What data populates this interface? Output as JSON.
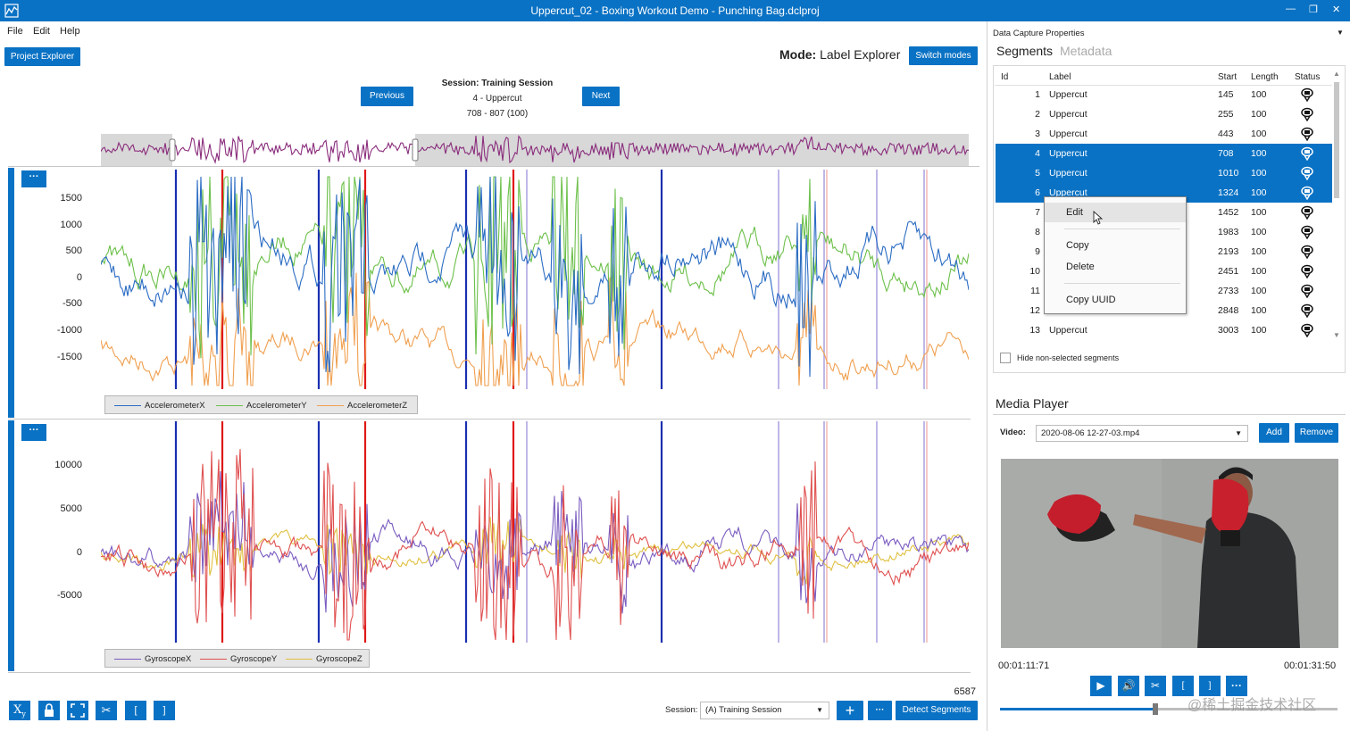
{
  "window": {
    "title": "Uppercut_02 - Boxing Workout Demo - Punching Bag.dclproj",
    "accent": "#0a72c4"
  },
  "menu": [
    "File",
    "Edit",
    "Help"
  ],
  "project_explorer_label": "Project Explorer",
  "mode": {
    "prefix": "Mode:",
    "value": "Label Explorer",
    "switch_label": "Switch modes"
  },
  "session_nav": {
    "previous": "Previous",
    "next": "Next",
    "line1": "Session: Training Session",
    "line2": "4 - Uppercut",
    "line3": "708 - 807 (100)"
  },
  "accel_chart": {
    "dots_label": "···",
    "yticks": [
      "1500",
      "1000",
      "500",
      "0",
      "-500",
      "-1000",
      "-1500"
    ],
    "series": [
      {
        "name": "AccelerometerX",
        "color": "#2b6cc4"
      },
      {
        "name": "AccelerometerY",
        "color": "#6cc04a"
      },
      {
        "name": "AccelerometerZ",
        "color": "#f0a050"
      }
    ]
  },
  "gyro_chart": {
    "dots_label": "···",
    "yticks": [
      "10000",
      "5000",
      "0",
      "-5000"
    ],
    "series": [
      {
        "name": "GyroscopeX",
        "color": "#7a5cc0"
      },
      {
        "name": "GyroscopeY",
        "color": "#e05050"
      },
      {
        "name": "GyroscopeZ",
        "color": "#e0c040"
      }
    ]
  },
  "bottom_toolbar": {
    "count": "6587",
    "session_label": "Session:",
    "session_value": "(A) Training Session",
    "detect_label": "Detect Segments",
    "icons": [
      "xy-icon",
      "lock-icon",
      "fit-icon",
      "scissors-icon",
      "bracket-left-icon",
      "bracket-right-icon"
    ]
  },
  "data_capture": {
    "title": "Data Capture Properties",
    "tabs": [
      "Segments",
      "Metadata"
    ],
    "columns": [
      "Id",
      "Label",
      "Start",
      "Length",
      "Status"
    ],
    "rows": [
      {
        "id": "1",
        "label": "Uppercut",
        "start": "145",
        "length": "100",
        "selected": false
      },
      {
        "id": "2",
        "label": "Uppercut",
        "start": "255",
        "length": "100",
        "selected": false
      },
      {
        "id": "3",
        "label": "Uppercut",
        "start": "443",
        "length": "100",
        "selected": false
      },
      {
        "id": "4",
        "label": "Uppercut",
        "start": "708",
        "length": "100",
        "selected": true
      },
      {
        "id": "5",
        "label": "Uppercut",
        "start": "1010",
        "length": "100",
        "selected": true
      },
      {
        "id": "6",
        "label": "Uppercut",
        "start": "1324",
        "length": "100",
        "selected": true
      },
      {
        "id": "7",
        "label": "",
        "start": "1452",
        "length": "100",
        "selected": false
      },
      {
        "id": "8",
        "label": "",
        "start": "1983",
        "length": "100",
        "selected": false
      },
      {
        "id": "9",
        "label": "",
        "start": "2193",
        "length": "100",
        "selected": false
      },
      {
        "id": "10",
        "label": "",
        "start": "2451",
        "length": "100",
        "selected": false
      },
      {
        "id": "11",
        "label": "",
        "start": "2733",
        "length": "100",
        "selected": false
      },
      {
        "id": "12",
        "label": "",
        "start": "2848",
        "length": "100",
        "selected": false
      },
      {
        "id": "13",
        "label": "Uppercut",
        "start": "3003",
        "length": "100",
        "selected": false
      }
    ],
    "hide_label": "Hide non-selected segments",
    "context_menu": [
      "Edit",
      "Copy",
      "Delete",
      "Copy UUID"
    ]
  },
  "media_player": {
    "title": "Media Player",
    "video_label": "Video:",
    "video_file": "2020-08-06 12-27-03.mp4",
    "add_label": "Add",
    "remove_label": "Remove",
    "time_current": "00:01:11:71",
    "time_total": "00:01:31:50",
    "progress": 0.46
  },
  "watermark": "@稀土掘金技术社区"
}
